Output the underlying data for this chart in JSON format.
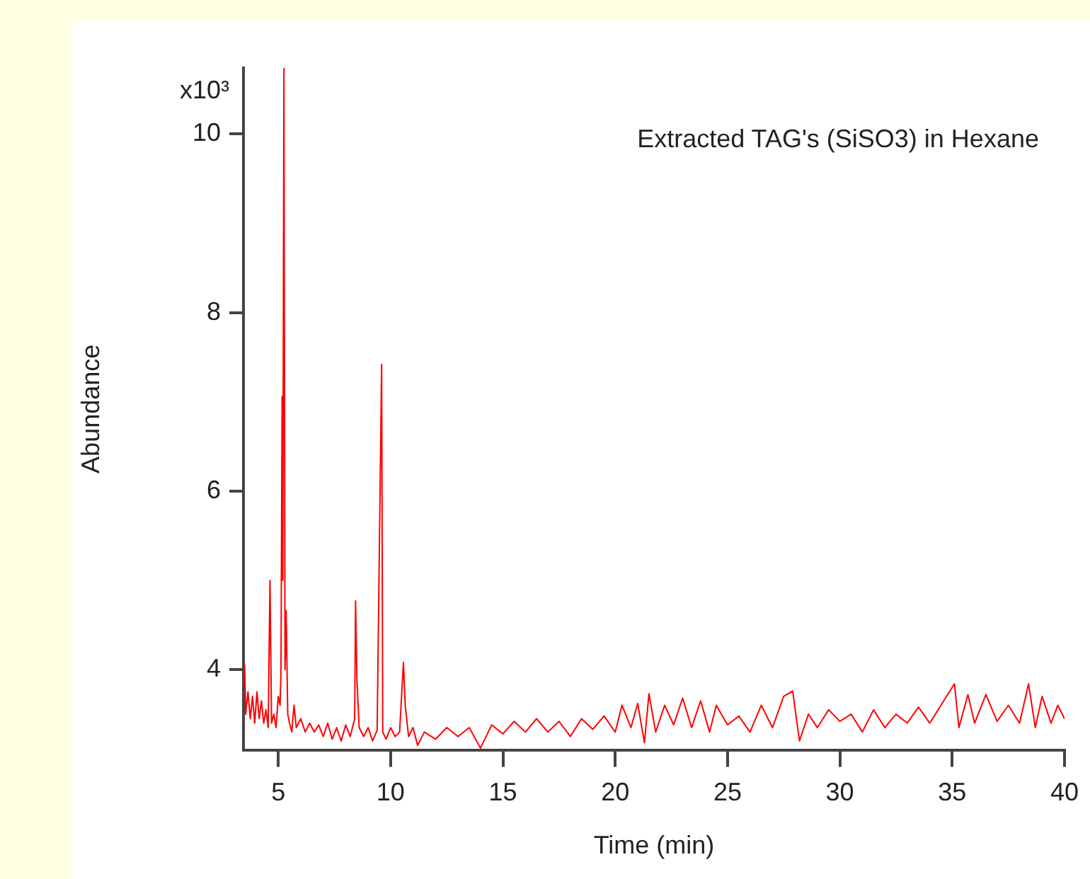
{
  "chart_data": {
    "type": "line",
    "title": "Extracted TAG's (SiSO3) in Hexane",
    "xlabel": "Time (min)",
    "ylabel": "Abundance",
    "annotations": [
      "x10³"
    ],
    "x": [
      3.5,
      3.55,
      3.65,
      3.75,
      3.85,
      3.95,
      4.05,
      4.15,
      4.25,
      4.35,
      4.45,
      4.55,
      4.63,
      4.7,
      4.8,
      4.9,
      5.0,
      5.08,
      5.12,
      5.17,
      5.2,
      5.25,
      5.3,
      5.35,
      5.42,
      5.5,
      5.6,
      5.7,
      5.8,
      6.0,
      6.2,
      6.4,
      6.6,
      6.8,
      7.0,
      7.2,
      7.4,
      7.6,
      7.8,
      8.0,
      8.2,
      8.4,
      8.44,
      8.5,
      8.6,
      8.8,
      9.0,
      9.2,
      9.4,
      9.6,
      9.65,
      9.8,
      10.0,
      10.2,
      10.4,
      10.57,
      10.65,
      10.8,
      11.0,
      11.2,
      11.5,
      12,
      12.5,
      13,
      13.5,
      14,
      14.5,
      15,
      15.5,
      16,
      16.5,
      17,
      17.5,
      18,
      18.5,
      19,
      19.5,
      20,
      20.3,
      20.7,
      21,
      21.3,
      21.5,
      21.8,
      22.2,
      22.6,
      23,
      23.4,
      23.8,
      24.2,
      24.5,
      25,
      25.5,
      26,
      26.5,
      27,
      27.5,
      27.9,
      28.2,
      28.6,
      29,
      29.5,
      30,
      30.5,
      31,
      31.5,
      32,
      32.5,
      33,
      33.5,
      34,
      34.5,
      35.1,
      35.3,
      35.7,
      36,
      36.5,
      37,
      37.5,
      38,
      38.4,
      38.7,
      39,
      39.4,
      39.7,
      40
    ],
    "series": [
      {
        "color": "#ff0000",
        "values": [
          4.06,
          3.5,
          3.75,
          3.45,
          3.7,
          3.4,
          3.75,
          3.45,
          3.65,
          3.4,
          3.55,
          3.35,
          5.0,
          3.4,
          3.5,
          3.35,
          3.7,
          3.6,
          4.0,
          7.06,
          5.0,
          10.74,
          4.0,
          4.66,
          3.5,
          3.4,
          3.3,
          3.6,
          3.35,
          3.45,
          3.3,
          3.4,
          3.3,
          3.38,
          3.25,
          3.4,
          3.22,
          3.35,
          3.2,
          3.38,
          3.25,
          3.45,
          4.77,
          3.9,
          3.35,
          3.25,
          3.35,
          3.2,
          3.32,
          7.42,
          3.3,
          3.22,
          3.35,
          3.25,
          3.3,
          4.08,
          3.6,
          3.25,
          3.35,
          3.15,
          3.3,
          3.22,
          3.35,
          3.25,
          3.35,
          3.12,
          3.38,
          3.28,
          3.42,
          3.3,
          3.45,
          3.3,
          3.42,
          3.25,
          3.45,
          3.33,
          3.48,
          3.3,
          3.6,
          3.35,
          3.62,
          3.18,
          3.73,
          3.3,
          3.6,
          3.38,
          3.68,
          3.35,
          3.65,
          3.3,
          3.6,
          3.38,
          3.48,
          3.3,
          3.6,
          3.35,
          3.7,
          3.76,
          3.2,
          3.5,
          3.35,
          3.55,
          3.42,
          3.5,
          3.3,
          3.55,
          3.35,
          3.5,
          3.4,
          3.58,
          3.4,
          3.6,
          3.84,
          3.35,
          3.72,
          3.4,
          3.72,
          3.42,
          3.6,
          3.4,
          3.84,
          3.35,
          3.7,
          3.4,
          3.6,
          3.45
        ]
      }
    ],
    "xlim": [
      3.45,
      40
    ],
    "xticks": [
      5,
      10,
      15,
      20,
      25,
      30,
      35,
      40
    ],
    "ylim": [
      3.1,
      10.74
    ],
    "yticks": [
      4,
      6,
      8,
      10
    ],
    "grid": false,
    "legend": false,
    "marker": "none",
    "line_style": "solid"
  }
}
